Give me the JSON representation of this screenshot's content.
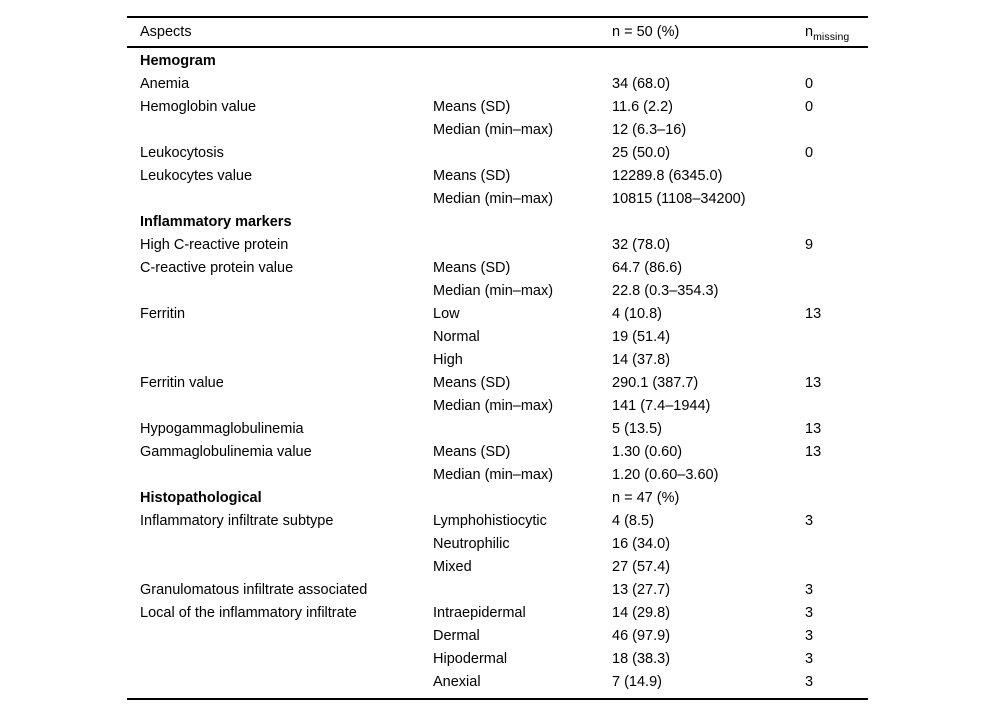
{
  "table": {
    "headers": {
      "aspects": "Aspects",
      "n_col": "n = 50 (%)",
      "missing_main": "n",
      "missing_sub": "missing"
    },
    "rows": [
      {
        "aspect": "Hemogram",
        "section": true,
        "sub": "",
        "value": "",
        "missing": ""
      },
      {
        "aspect": "Anemia",
        "section": false,
        "sub": "",
        "value": "34 (68.0)",
        "missing": "0"
      },
      {
        "aspect": "Hemoglobin value",
        "section": false,
        "sub": "Means (SD)",
        "value": "11.6 (2.2)",
        "missing": "0"
      },
      {
        "aspect": "",
        "section": false,
        "sub": "Median (min–max)",
        "value": "12 (6.3–16)",
        "missing": ""
      },
      {
        "aspect": "Leukocytosis",
        "section": false,
        "sub": "",
        "value": "25 (50.0)",
        "missing": "0"
      },
      {
        "aspect": "Leukocytes value",
        "section": false,
        "sub": "Means (SD)",
        "value": "12289.8 (6345.0)",
        "missing": ""
      },
      {
        "aspect": "",
        "section": false,
        "sub": "Median (min–max)",
        "value": "10815 (1108–34200)",
        "missing": ""
      },
      {
        "aspect": "Inflammatory markers",
        "section": true,
        "sub": "",
        "value": "",
        "missing": ""
      },
      {
        "aspect": "High C-reactive protein",
        "section": false,
        "sub": "",
        "value": "32 (78.0)",
        "missing": "9"
      },
      {
        "aspect": "C-reactive protein value",
        "section": false,
        "sub": "Means (SD)",
        "value": "64.7 (86.6)",
        "missing": ""
      },
      {
        "aspect": "",
        "section": false,
        "sub": "Median (min–max)",
        "value": "22.8 (0.3–354.3)",
        "missing": ""
      },
      {
        "aspect": "Ferritin",
        "section": false,
        "sub": "Low",
        "value": "4 (10.8)",
        "missing": "13"
      },
      {
        "aspect": "",
        "section": false,
        "sub": "Normal",
        "value": "19 (51.4)",
        "missing": ""
      },
      {
        "aspect": "",
        "section": false,
        "sub": "High",
        "value": "14 (37.8)",
        "missing": ""
      },
      {
        "aspect": "Ferritin value",
        "section": false,
        "sub": "Means (SD)",
        "value": "290.1 (387.7)",
        "missing": "13"
      },
      {
        "aspect": "",
        "section": false,
        "sub": "Median (min–max)",
        "value": "141 (7.4–1944)",
        "missing": ""
      },
      {
        "aspect": "Hypogammaglobulinemia",
        "section": false,
        "sub": "",
        "value": "5 (13.5)",
        "missing": "13"
      },
      {
        "aspect": "Gammaglobulinemia value",
        "section": false,
        "sub": "Means (SD)",
        "value": "1.30 (0.60)",
        "missing": "13"
      },
      {
        "aspect": "",
        "section": false,
        "sub": "Median (min–max)",
        "value": "1.20 (0.60–3.60)",
        "missing": ""
      },
      {
        "aspect": "Histopathological",
        "section": true,
        "sub": "",
        "value": "n = 47 (%)",
        "missing": ""
      },
      {
        "aspect": "Inflammatory infiltrate subtype",
        "section": false,
        "sub": "Lymphohistiocytic",
        "value": "4 (8.5)",
        "missing": "3"
      },
      {
        "aspect": "",
        "section": false,
        "sub": "Neutrophilic",
        "value": "16 (34.0)",
        "missing": ""
      },
      {
        "aspect": "",
        "section": false,
        "sub": "Mixed",
        "value": "27 (57.4)",
        "missing": ""
      },
      {
        "aspect": "Granulomatous infiltrate associated",
        "section": false,
        "sub": "",
        "value": "13 (27.7)",
        "missing": "3"
      },
      {
        "aspect": "Local of the inflammatory infiltrate",
        "section": false,
        "sub": "Intraepidermal",
        "value": "14 (29.8)",
        "missing": "3"
      },
      {
        "aspect": "",
        "section": false,
        "sub": "Dermal",
        "value": "46 (97.9)",
        "missing": "3"
      },
      {
        "aspect": "",
        "section": false,
        "sub": "Hipodermal",
        "value": "18 (38.3)",
        "missing": "3"
      },
      {
        "aspect": "",
        "section": false,
        "sub": "Anexial",
        "value": "7 (14.9)",
        "missing": "3"
      }
    ],
    "colors": {
      "text": "#000000",
      "rule": "#000000",
      "background": "#ffffff"
    }
  }
}
